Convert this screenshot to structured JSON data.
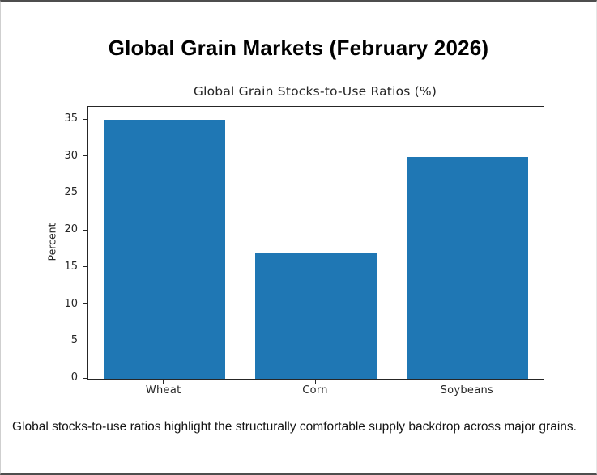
{
  "page": {
    "title": "Global Grain Markets (February 2026)",
    "caption": "Global stocks-to-use ratios highlight the structurally comfortable supply backdrop across major grains."
  },
  "chart_data": {
    "type": "bar",
    "title": "Global Grain Stocks-to-Use Ratios (%)",
    "categories": [
      "Wheat",
      "Corn",
      "Soybeans"
    ],
    "values": [
      35,
      17,
      30
    ],
    "xlabel": "",
    "ylabel": "Percent",
    "yticks": [
      0,
      5,
      10,
      15,
      20,
      25,
      30,
      35
    ],
    "ylim": [
      0,
      36.75
    ],
    "bar_color": "#1f77b4",
    "grid": false,
    "legend": "none"
  }
}
